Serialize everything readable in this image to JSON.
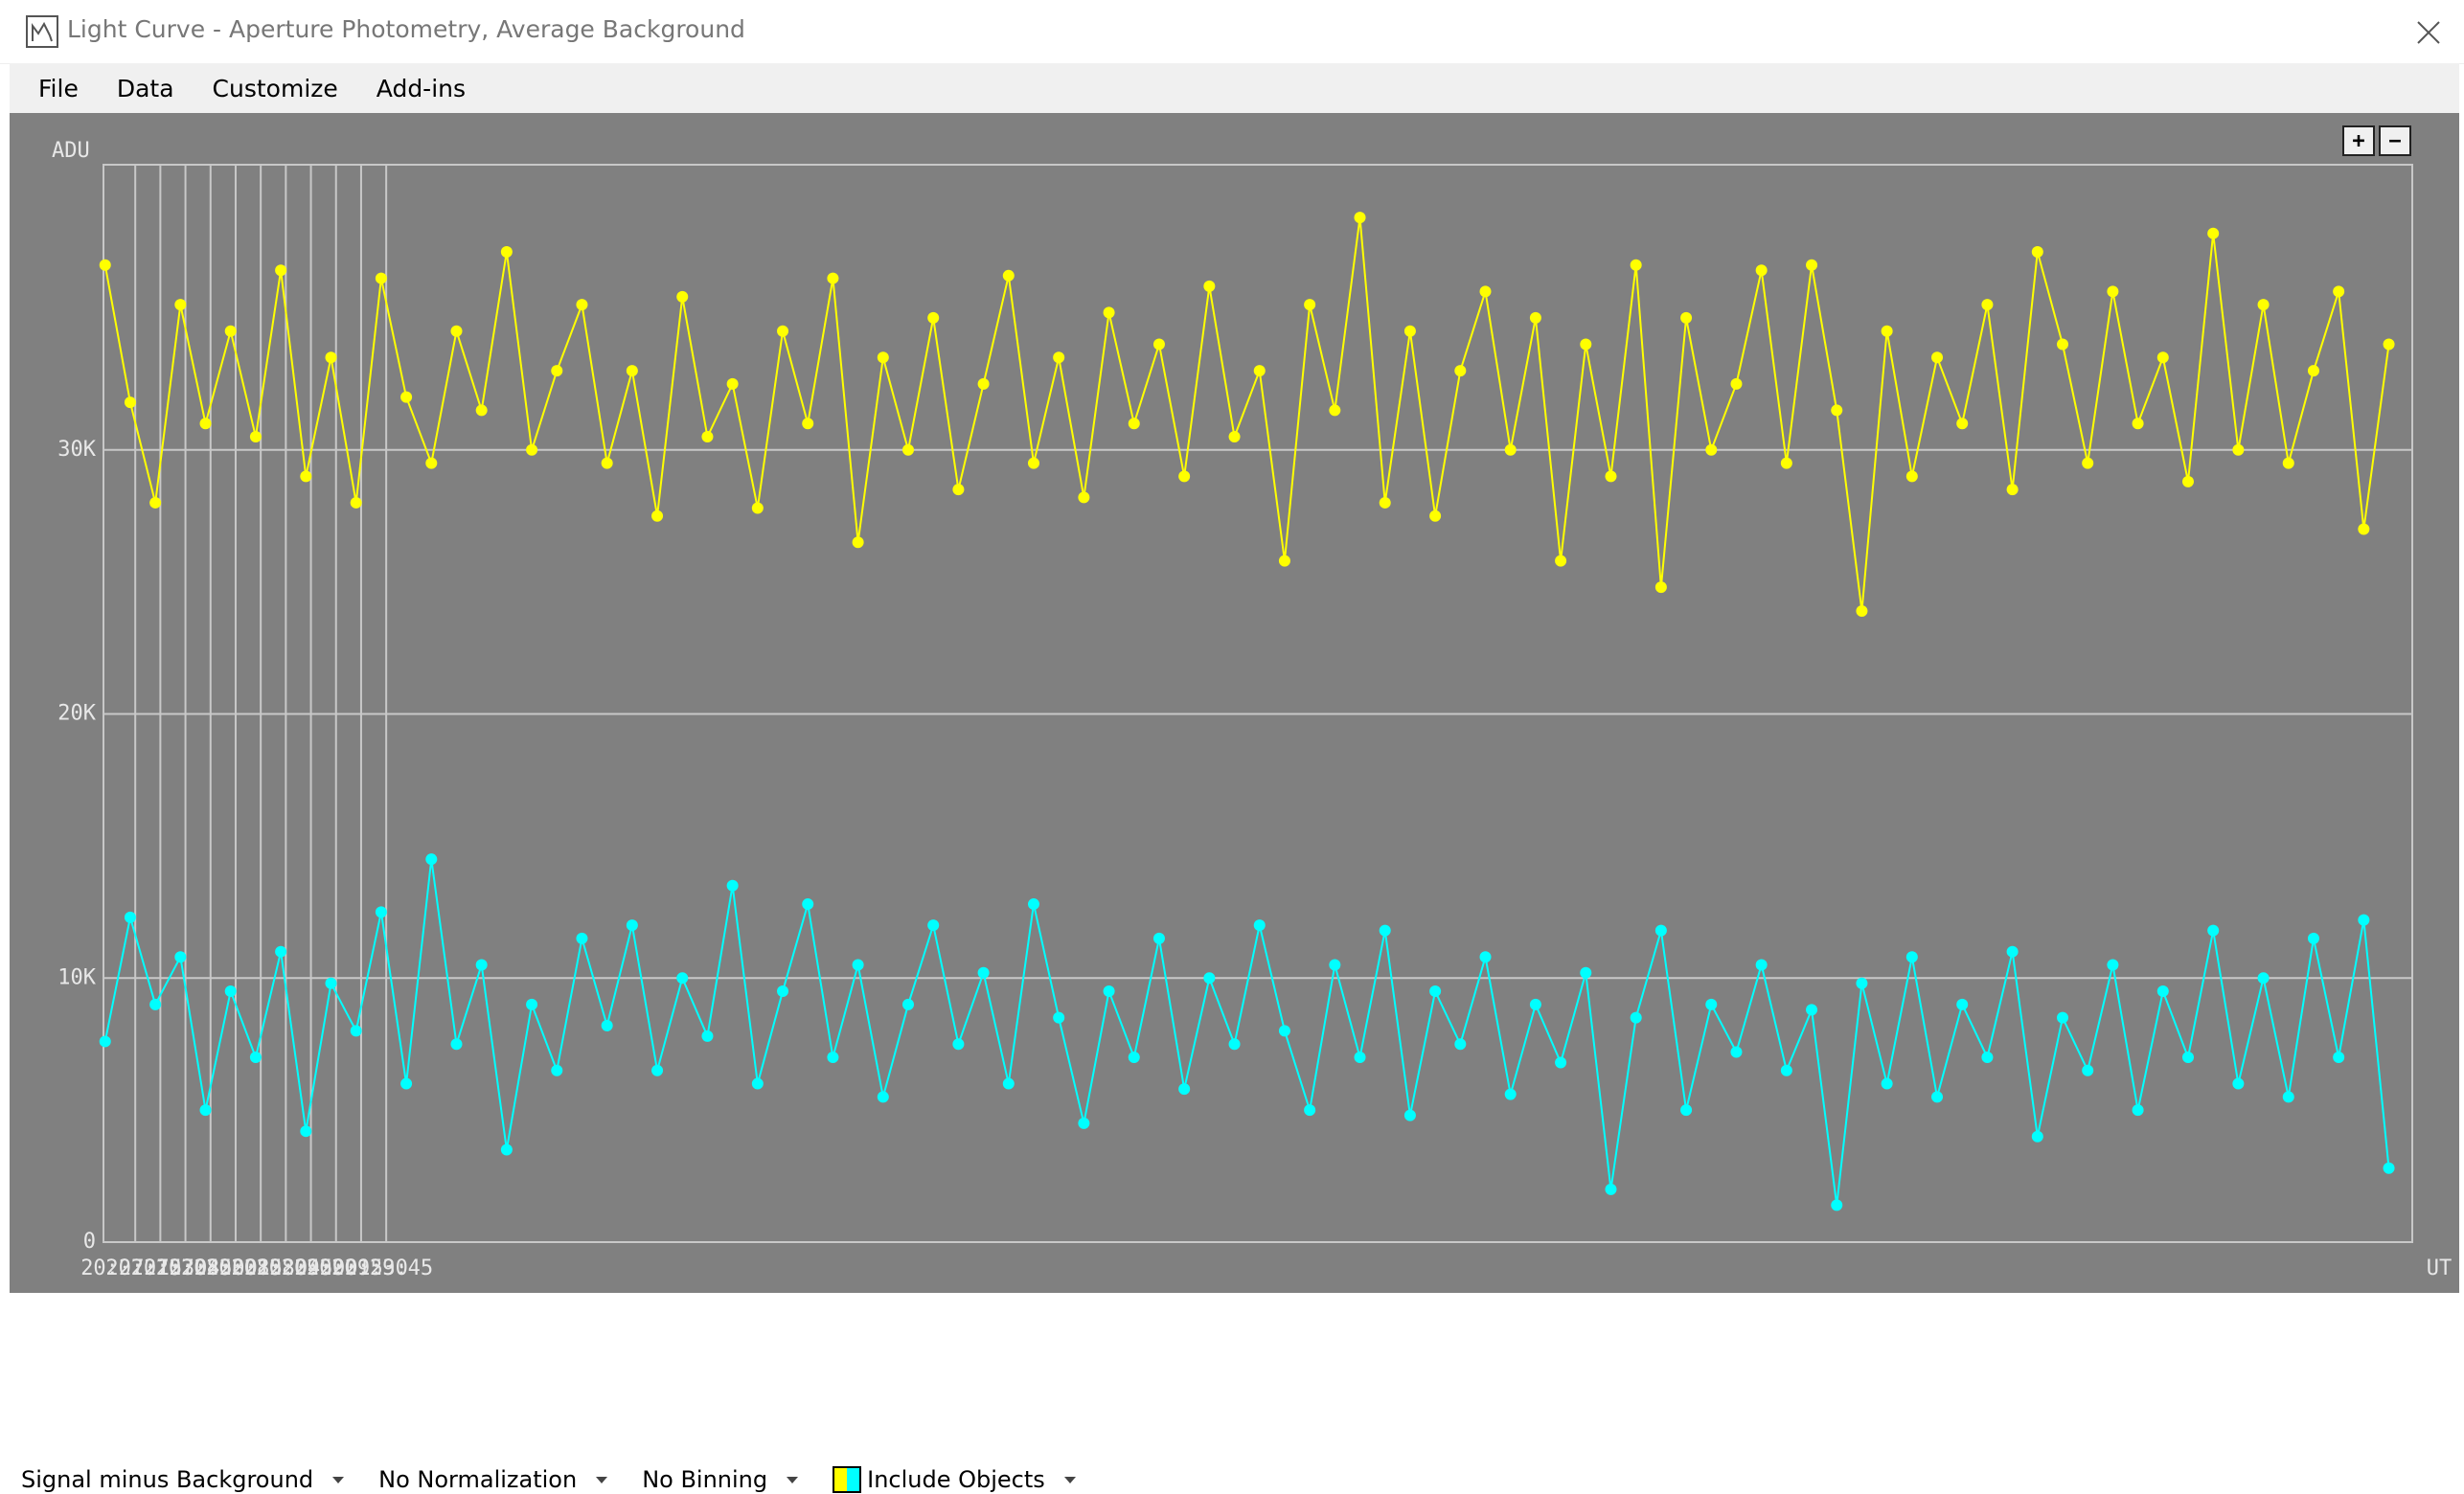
{
  "window": {
    "title": "Light Curve - Aperture Photometry, Average Background"
  },
  "menu": [
    "File",
    "Data",
    "Customize",
    "Add-ins"
  ],
  "zoom_controls": [
    "+",
    "−"
  ],
  "chart_data": {
    "type": "line",
    "ylabel": "ADU",
    "xlabel": "UT",
    "markers": true,
    "grid": true,
    "xlim": [
      73616,
      74996
    ],
    "ylim": [
      0,
      40800
    ],
    "yticks": [
      0,
      {
        "value": 10000,
        "label": "10K"
      },
      {
        "value": 20000,
        "label": "20K"
      },
      {
        "value": 30000,
        "label": "30K"
      }
    ],
    "xticks": [
      {
        "value": 73635,
        "label": "20:27:15"
      },
      {
        "value": 73650,
        "label": "20:27:30"
      },
      {
        "value": 73665,
        "label": "20:27:45"
      },
      {
        "value": 73680,
        "label": "20:28:00"
      },
      {
        "value": 73695,
        "label": "20:28:15"
      },
      {
        "value": 73710,
        "label": "20:28:30"
      },
      {
        "value": 73725,
        "label": "20:28:45"
      },
      {
        "value": 73740,
        "label": "20:29:00"
      },
      {
        "value": 73755,
        "label": "20:29:15"
      },
      {
        "value": 73770,
        "label": "20:29:30"
      },
      {
        "value": 73785,
        "label": "20:29:45"
      }
    ],
    "x": [
      73617,
      73632,
      73647,
      73662,
      73677,
      73692,
      73707,
      73722,
      73737,
      73752,
      73767,
      73782,
      73797,
      73812,
      73827,
      73842,
      73857,
      73872,
      73887,
      73902,
      73917,
      73932,
      73947,
      73962,
      73977,
      73992,
      74007,
      74022,
      74037,
      74052,
      74067,
      74082,
      74097,
      74112,
      74127,
      74142,
      74157,
      74172,
      74187,
      74202,
      74217,
      74232,
      74247,
      74262,
      74277,
      74292,
      74307,
      74322,
      74337,
      74352,
      74367,
      74382,
      74397,
      74412,
      74427,
      74442,
      74457,
      74472,
      74487,
      74502,
      74517,
      74532,
      74547,
      74562,
      74577,
      74592,
      74607,
      74622,
      74637,
      74652,
      74667,
      74682,
      74697,
      74712,
      74727,
      74742,
      74757,
      74772,
      74787,
      74802,
      74817,
      74832,
      74847,
      74862,
      74877,
      74892,
      74907,
      74922,
      74937,
      74952,
      74967,
      74982
    ],
    "series": [
      {
        "color": "#ffff00",
        "values": [
          37000,
          31800,
          28000,
          35500,
          31000,
          34500,
          30500,
          36800,
          29000,
          33500,
          28000,
          36500,
          32000,
          29500,
          34500,
          31500,
          37500,
          30000,
          33000,
          35500,
          29500,
          33000,
          27500,
          35800,
          30500,
          32500,
          27800,
          34500,
          31000,
          36500,
          26500,
          33500,
          30000,
          35000,
          28500,
          32500,
          36600,
          29500,
          33500,
          28200,
          35200,
          31000,
          34000,
          29000,
          36200,
          30500,
          33000,
          25800,
          35500,
          31500,
          38800,
          28000,
          34500,
          27500,
          33000,
          36000,
          30000,
          35000,
          25800,
          34000,
          29000,
          37000,
          24800,
          35000,
          30000,
          32500,
          36800,
          29500,
          37000,
          31500,
          23900,
          34500,
          29000,
          33500,
          31000,
          35500,
          28500,
          37500,
          34000,
          29500,
          36000,
          31000,
          33500,
          28800,
          38200,
          30000,
          35500,
          29500,
          33000,
          36000,
          27000,
          34000
        ]
      },
      {
        "color": "#00ffff",
        "values": [
          7600,
          12300,
          9000,
          10800,
          5000,
          9500,
          7000,
          11000,
          4200,
          9800,
          8000,
          12500,
          6000,
          14500,
          7500,
          10500,
          3500,
          9000,
          6500,
          11500,
          8200,
          12000,
          6500,
          10000,
          7800,
          13500,
          6000,
          9500,
          12800,
          7000,
          10500,
          5500,
          9000,
          12000,
          7500,
          10200,
          6000,
          12800,
          8500,
          4500,
          9500,
          7000,
          11500,
          5800,
          10000,
          7500,
          12000,
          8000,
          5000,
          10500,
          7000,
          11800,
          4800,
          9500,
          7500,
          10800,
          5600,
          9000,
          6800,
          10200,
          2000,
          8500,
          11800,
          5000,
          9000,
          7200,
          10500,
          6500,
          8800,
          1400,
          9800,
          6000,
          10800,
          5500,
          9000,
          7000,
          11000,
          4000,
          8500,
          6500,
          10500,
          5000,
          9500,
          7000,
          11800,
          6000,
          10000,
          5500,
          11500,
          7000,
          12200,
          2800
        ]
      }
    ]
  },
  "status_bar": [
    "Signal minus Background",
    "No Normalization",
    "No Binning",
    "Include Objects"
  ]
}
